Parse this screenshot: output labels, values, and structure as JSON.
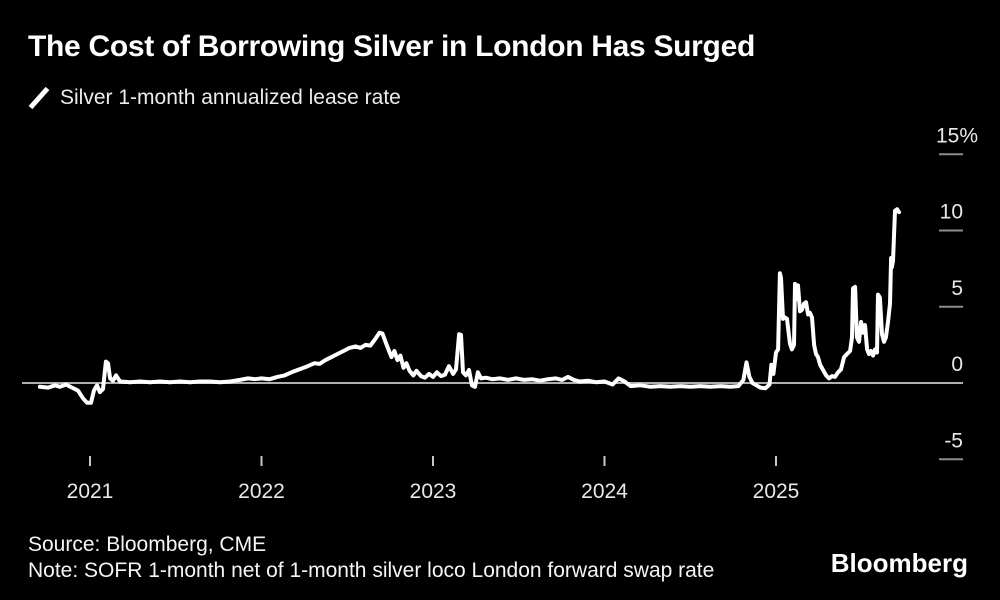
{
  "header": {
    "title": "The Cost of Borrowing Silver in London Has Surged",
    "legend": {
      "marker": "diagonal-line-swatch",
      "label": "Silver 1-month annualized lease rate"
    }
  },
  "footer": {
    "source": "Source: Bloomberg, CME",
    "note": "Note: SOFR 1-month net of 1-month silver loco London forward swap rate",
    "brand": "Bloomberg"
  },
  "colors": {
    "background": "#000000",
    "title": "#ffffff",
    "legend_text": "#ededed",
    "axis_text": "#e8e8e8",
    "y_tick": "#8c8c8c",
    "x_tick": "#c8c8c8",
    "zero_line": "#b0b0b0",
    "line": "#ffffff",
    "footer_text": "#f5f5f5"
  },
  "chart_data": {
    "type": "line",
    "title": "The Cost of Borrowing Silver in London Has Surged",
    "xlabel": "",
    "ylabel": "",
    "unit": "%",
    "grid": false,
    "legend_position": "top-left",
    "y_axis_side": "right",
    "zero_line": true,
    "x_range": [
      2020.71,
      2025.73
    ],
    "ylim": [
      -7.5,
      17.5
    ],
    "x_ticks": [
      2021,
      2022,
      2023,
      2024,
      2025
    ],
    "x_tick_labels": [
      "2021",
      "2022",
      "2023",
      "2024",
      "2025"
    ],
    "y_ticks": [
      {
        "value": 15,
        "label": "15%"
      },
      {
        "value": 10,
        "label": "10"
      },
      {
        "value": 5,
        "label": "5"
      },
      {
        "value": 0,
        "label": "0"
      },
      {
        "value": -5,
        "label": "-5"
      }
    ],
    "series": [
      {
        "name": "Silver 1-month annualized lease rate",
        "color": "#ffffff",
        "points": [
          [
            2020.708,
            -0.25
          ],
          [
            2020.755,
            -0.3
          ],
          [
            2020.796,
            -0.15
          ],
          [
            2020.825,
            -0.25
          ],
          [
            2020.86,
            -0.1
          ],
          [
            2020.895,
            -0.3
          ],
          [
            2020.93,
            -0.5
          ],
          [
            2020.959,
            -1.0
          ],
          [
            2020.983,
            -1.3
          ],
          [
            2021.006,
            -1.3
          ],
          [
            2021.023,
            -0.5
          ],
          [
            2021.041,
            -0.15
          ],
          [
            2021.058,
            -0.6
          ],
          [
            2021.076,
            -0.4
          ],
          [
            2021.093,
            1.4
          ],
          [
            2021.105,
            1.3
          ],
          [
            2021.117,
            0.3
          ],
          [
            2021.134,
            0.15
          ],
          [
            2021.152,
            0.5
          ],
          [
            2021.175,
            0.1
          ],
          [
            2021.233,
            0.05
          ],
          [
            2021.292,
            0.1
          ],
          [
            2021.35,
            0.05
          ],
          [
            2021.408,
            0.1
          ],
          [
            2021.466,
            0.05
          ],
          [
            2021.525,
            0.1
          ],
          [
            2021.583,
            0.05
          ],
          [
            2021.641,
            0.1
          ],
          [
            2021.7,
            0.1
          ],
          [
            2021.758,
            0.05
          ],
          [
            2021.816,
            0.1
          ],
          [
            2021.875,
            0.2
          ],
          [
            2021.921,
            0.3
          ],
          [
            2021.962,
            0.25
          ],
          [
            2022.0,
            0.3
          ],
          [
            2022.047,
            0.25
          ],
          [
            2022.093,
            0.4
          ],
          [
            2022.134,
            0.5
          ],
          [
            2022.175,
            0.7
          ],
          [
            2022.222,
            0.9
          ],
          [
            2022.269,
            1.1
          ],
          [
            2022.309,
            1.3
          ],
          [
            2022.338,
            1.25
          ],
          [
            2022.373,
            1.5
          ],
          [
            2022.408,
            1.7
          ],
          [
            2022.443,
            1.9
          ],
          [
            2022.478,
            2.1
          ],
          [
            2022.513,
            2.3
          ],
          [
            2022.548,
            2.4
          ],
          [
            2022.577,
            2.3
          ],
          [
            2022.606,
            2.5
          ],
          [
            2022.635,
            2.45
          ],
          [
            2022.664,
            2.9
          ],
          [
            2022.688,
            3.3
          ],
          [
            2022.705,
            3.25
          ],
          [
            2022.723,
            2.7
          ],
          [
            2022.74,
            2.2
          ],
          [
            2022.758,
            1.7
          ],
          [
            2022.775,
            2.1
          ],
          [
            2022.793,
            1.5
          ],
          [
            2022.81,
            1.8
          ],
          [
            2022.828,
            1.0
          ],
          [
            2022.845,
            1.3
          ],
          [
            2022.863,
            0.8
          ],
          [
            2022.886,
            0.5
          ],
          [
            2022.903,
            0.8
          ],
          [
            2022.93,
            0.45
          ],
          [
            2022.953,
            0.35
          ],
          [
            2022.977,
            0.6
          ],
          [
            2023.0,
            0.4
          ],
          [
            2023.023,
            0.7
          ],
          [
            2023.047,
            0.45
          ],
          [
            2023.07,
            0.55
          ],
          [
            2023.093,
            1.1
          ],
          [
            2023.117,
            0.6
          ],
          [
            2023.134,
            0.9
          ],
          [
            2023.152,
            3.2
          ],
          [
            2023.163,
            3.15
          ],
          [
            2023.175,
            0.7
          ],
          [
            2023.192,
            0.5
          ],
          [
            2023.21,
            0.85
          ],
          [
            2023.227,
            -0.15
          ],
          [
            2023.245,
            -0.25
          ],
          [
            2023.262,
            0.7
          ],
          [
            2023.28,
            0.3
          ],
          [
            2023.309,
            0.35
          ],
          [
            2023.344,
            0.25
          ],
          [
            2023.39,
            0.3
          ],
          [
            2023.437,
            0.2
          ],
          [
            2023.484,
            0.3
          ],
          [
            2023.53,
            0.2
          ],
          [
            2023.577,
            0.25
          ],
          [
            2023.624,
            0.15
          ],
          [
            2023.671,
            0.25
          ],
          [
            2023.717,
            0.3
          ],
          [
            2023.752,
            0.2
          ],
          [
            2023.787,
            0.4
          ],
          [
            2023.822,
            0.2
          ],
          [
            2023.857,
            0.1
          ],
          [
            2023.904,
            0.15
          ],
          [
            2023.95,
            0.05
          ],
          [
            2024.0,
            0.1
          ],
          [
            2024.047,
            -0.1
          ],
          [
            2024.082,
            0.3
          ],
          [
            2024.117,
            0.1
          ],
          [
            2024.152,
            -0.2
          ],
          [
            2024.21,
            -0.15
          ],
          [
            2024.268,
            -0.25
          ],
          [
            2024.327,
            -0.2
          ],
          [
            2024.385,
            -0.25
          ],
          [
            2024.443,
            -0.2
          ],
          [
            2024.501,
            -0.25
          ],
          [
            2024.56,
            -0.2
          ],
          [
            2024.618,
            -0.25
          ],
          [
            2024.676,
            -0.2
          ],
          [
            2024.734,
            -0.25
          ],
          [
            2024.781,
            -0.2
          ],
          [
            2024.81,
            0.2
          ],
          [
            2024.828,
            1.35
          ],
          [
            2024.845,
            0.4
          ],
          [
            2024.863,
            0.0
          ],
          [
            2024.886,
            -0.15
          ],
          [
            2024.909,
            -0.3
          ],
          [
            2024.938,
            -0.35
          ],
          [
            2024.962,
            -0.1
          ],
          [
            2024.973,
            1.2
          ],
          [
            2024.985,
            0.6
          ],
          [
            2025.0,
            2.0
          ],
          [
            2025.012,
            2.2
          ],
          [
            2025.023,
            7.2
          ],
          [
            2025.029,
            6.9
          ],
          [
            2025.041,
            4.2
          ],
          [
            2025.052,
            4.3
          ],
          [
            2025.064,
            4.2
          ],
          [
            2025.081,
            2.6
          ],
          [
            2025.093,
            2.2
          ],
          [
            2025.105,
            2.5
          ],
          [
            2025.111,
            6.5
          ],
          [
            2025.117,
            5.5
          ],
          [
            2025.128,
            6.4
          ],
          [
            2025.14,
            4.7
          ],
          [
            2025.151,
            4.8
          ],
          [
            2025.163,
            5.2
          ],
          [
            2025.175,
            5.3
          ],
          [
            2025.187,
            4.5
          ],
          [
            2025.198,
            4.6
          ],
          [
            2025.21,
            4.3
          ],
          [
            2025.222,
            2.5
          ],
          [
            2025.233,
            1.9
          ],
          [
            2025.245,
            1.7
          ],
          [
            2025.257,
            1.2
          ],
          [
            2025.274,
            0.85
          ],
          [
            2025.292,
            0.5
          ],
          [
            2025.309,
            0.3
          ],
          [
            2025.327,
            0.45
          ],
          [
            2025.344,
            0.4
          ],
          [
            2025.362,
            0.7
          ],
          [
            2025.379,
            0.9
          ],
          [
            2025.397,
            1.7
          ],
          [
            2025.414,
            1.9
          ],
          [
            2025.432,
            2.1
          ],
          [
            2025.443,
            3.0
          ],
          [
            2025.449,
            6.2
          ],
          [
            2025.461,
            6.3
          ],
          [
            2025.472,
            3.0
          ],
          [
            2025.484,
            2.7
          ],
          [
            2025.496,
            4.0
          ],
          [
            2025.507,
            3.3
          ],
          [
            2025.519,
            3.8
          ],
          [
            2025.531,
            2.2
          ],
          [
            2025.542,
            1.9
          ],
          [
            2025.554,
            2.1
          ],
          [
            2025.566,
            1.8
          ],
          [
            2025.577,
            2.2
          ],
          [
            2025.589,
            2.0
          ],
          [
            2025.595,
            5.8
          ],
          [
            2025.606,
            5.6
          ],
          [
            2025.618,
            3.2
          ],
          [
            2025.63,
            2.7
          ],
          [
            2025.641,
            3.0
          ],
          [
            2025.653,
            4.0
          ],
          [
            2025.665,
            5.2
          ],
          [
            2025.671,
            8.2
          ],
          [
            2025.676,
            7.6
          ],
          [
            2025.682,
            8.0
          ],
          [
            2025.694,
            11.3
          ],
          [
            2025.706,
            11.4
          ],
          [
            2025.717,
            11.2
          ]
        ]
      }
    ]
  }
}
